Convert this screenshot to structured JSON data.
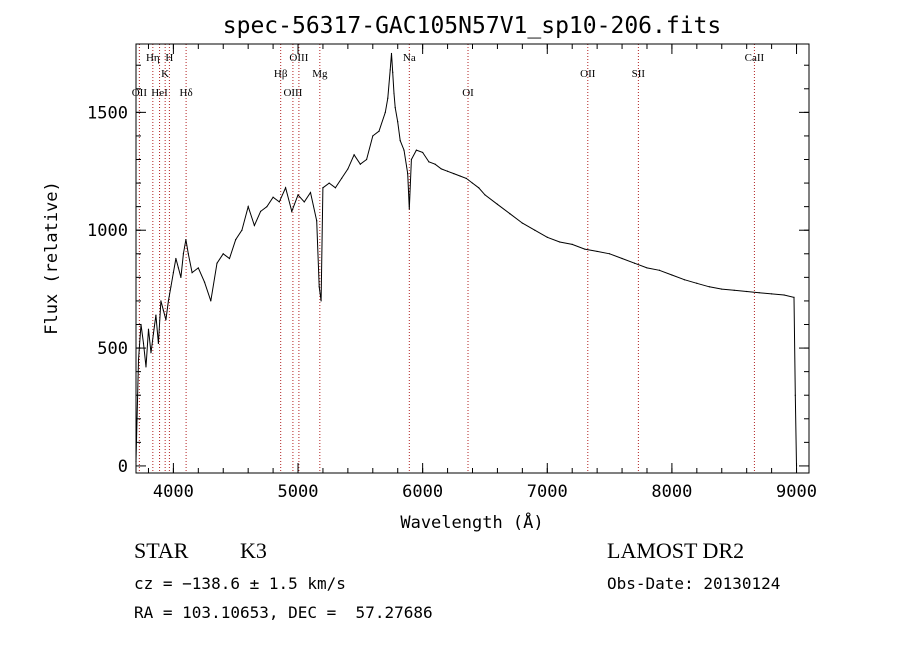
{
  "chart_data": {
    "type": "line",
    "title": "spec-56317-GAC105N57V1_sp10-206.fits",
    "xlabel": "Wavelength (Å)",
    "ylabel": "Flux (relative)",
    "xlim": [
      3700,
      9100
    ],
    "ylim": [
      -30,
      1790
    ],
    "xticks": [
      4000,
      5000,
      6000,
      7000,
      8000,
      9000
    ],
    "yticks": [
      0,
      500,
      1000,
      1500
    ],
    "grid": false,
    "line_color": "#000000",
    "marker_color": "#b22222",
    "spectral_lines": [
      {
        "label": "OII",
        "x": 3727,
        "row": 3
      },
      {
        "label": "Hη",
        "x": 3835,
        "row": 1
      },
      {
        "label": "HeI",
        "x": 3889,
        "row": 3
      },
      {
        "label": "K",
        "x": 3934,
        "row": 2
      },
      {
        "label": "H",
        "x": 3968,
        "row": 1
      },
      {
        "label": "Hδ",
        "x": 4102,
        "row": 3
      },
      {
        "label": "Hβ",
        "x": 4861,
        "row": 2
      },
      {
        "label": "OIII",
        "x": 4959,
        "row": 3
      },
      {
        "label": "OIII",
        "x": 5007,
        "row": 1
      },
      {
        "label": "Mg",
        "x": 5175,
        "row": 2
      },
      {
        "label": "Na",
        "x": 5893,
        "row": 1
      },
      {
        "label": "OI",
        "x": 6364,
        "row": 3
      },
      {
        "label": "OII",
        "x": 7325,
        "row": 2
      },
      {
        "label": "SII",
        "x": 7731,
        "row": 2
      },
      {
        "label": "CaII",
        "x": 8662,
        "row": 1
      }
    ],
    "series": [
      {
        "x": [
          3700,
          3720,
          3740,
          3760,
          3780,
          3800,
          3820,
          3840,
          3860,
          3880,
          3900,
          3920,
          3940,
          3960,
          3980,
          4000,
          4020,
          4040,
          4060,
          4080,
          4100,
          4120,
          4150,
          4200,
          4250,
          4300,
          4350,
          4400,
          4450,
          4500,
          4550,
          4600,
          4650,
          4700,
          4750,
          4800,
          4850,
          4900,
          4950,
          5000,
          5050,
          5100,
          5150,
          5170,
          5185,
          5200,
          5250,
          5300,
          5350,
          5400,
          5450,
          5500,
          5550,
          5600,
          5650,
          5700,
          5720,
          5740,
          5750,
          5760,
          5770,
          5780,
          5800,
          5820,
          5850,
          5880,
          5893,
          5910,
          5950,
          6000,
          6050,
          6100,
          6150,
          6200,
          6250,
          6300,
          6350,
          6400,
          6450,
          6500,
          6600,
          6700,
          6800,
          6900,
          7000,
          7100,
          7200,
          7300,
          7400,
          7500,
          7600,
          7700,
          7800,
          7900,
          8000,
          8100,
          8200,
          8300,
          8400,
          8500,
          8600,
          8700,
          8800,
          8900,
          8980,
          8990,
          9000
        ],
        "y": [
          20,
          450,
          600,
          520,
          420,
          580,
          480,
          560,
          640,
          520,
          700,
          660,
          620,
          700,
          760,
          820,
          880,
          840,
          800,
          900,
          960,
          900,
          820,
          840,
          780,
          700,
          860,
          900,
          880,
          960,
          1000,
          1100,
          1020,
          1080,
          1100,
          1140,
          1120,
          1180,
          1080,
          1150,
          1120,
          1160,
          1040,
          760,
          700,
          1180,
          1200,
          1180,
          1220,
          1260,
          1320,
          1280,
          1300,
          1400,
          1420,
          1500,
          1560,
          1680,
          1750,
          1670,
          1580,
          1520,
          1460,
          1380,
          1340,
          1240,
          1090,
          1300,
          1340,
          1330,
          1290,
          1280,
          1260,
          1250,
          1240,
          1230,
          1220,
          1200,
          1180,
          1150,
          1110,
          1070,
          1030,
          1000,
          970,
          950,
          940,
          920,
          910,
          900,
          880,
          860,
          840,
          830,
          810,
          790,
          775,
          760,
          750,
          745,
          740,
          735,
          730,
          725,
          715,
          300,
          0
        ]
      }
    ]
  },
  "info": {
    "object_class": "STAR",
    "subclass": "K3",
    "cz": "cz = −138.6 ± 1.5 km/s",
    "coords": "RA = 103.10653, DEC =  57.27686",
    "survey": "LAMOST DR2",
    "obs_date": "Obs-Date: 20130124"
  }
}
